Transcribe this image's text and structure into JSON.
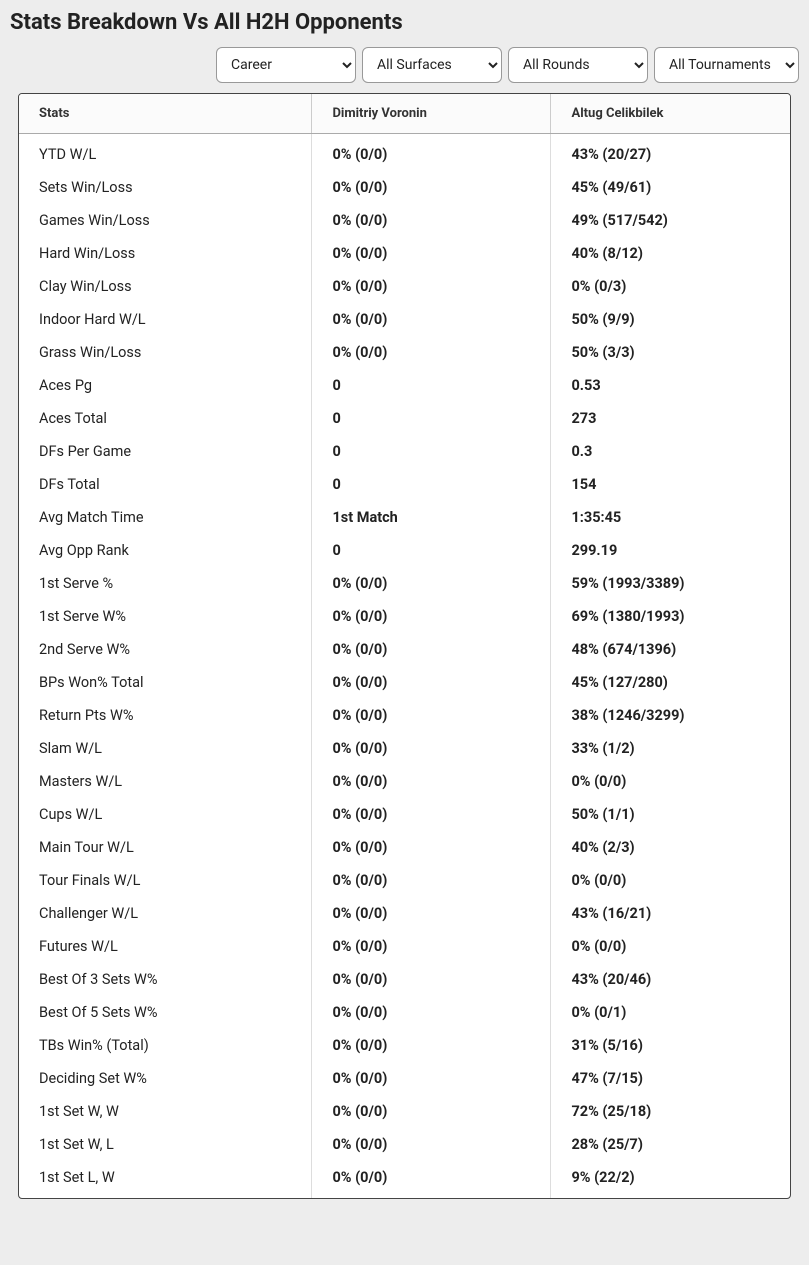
{
  "title": "Stats Breakdown Vs All H2H Opponents",
  "filters": {
    "period": {
      "selected": "Career"
    },
    "surface": {
      "selected": "All Surfaces"
    },
    "round": {
      "selected": "All Rounds"
    },
    "tournament": {
      "selected": "All Tournaments"
    }
  },
  "table": {
    "headers": {
      "stats": "Stats",
      "player1": "Dimitriy Voronin",
      "player2": "Altug Celikbilek"
    },
    "rows": [
      {
        "label": "YTD W/L",
        "p1": "0% (0/0)",
        "p2": "43% (20/27)"
      },
      {
        "label": "Sets Win/Loss",
        "p1": "0% (0/0)",
        "p2": "45% (49/61)"
      },
      {
        "label": "Games Win/Loss",
        "p1": "0% (0/0)",
        "p2": "49% (517/542)"
      },
      {
        "label": "Hard Win/Loss",
        "p1": "0% (0/0)",
        "p2": "40% (8/12)"
      },
      {
        "label": "Clay Win/Loss",
        "p1": "0% (0/0)",
        "p2": "0% (0/3)"
      },
      {
        "label": "Indoor Hard W/L",
        "p1": "0% (0/0)",
        "p2": "50% (9/9)"
      },
      {
        "label": "Grass Win/Loss",
        "p1": "0% (0/0)",
        "p2": "50% (3/3)"
      },
      {
        "label": "Aces Pg",
        "p1": "0",
        "p2": "0.53"
      },
      {
        "label": "Aces Total",
        "p1": "0",
        "p2": "273"
      },
      {
        "label": "DFs Per Game",
        "p1": "0",
        "p2": "0.3"
      },
      {
        "label": "DFs Total",
        "p1": "0",
        "p2": "154"
      },
      {
        "label": "Avg Match Time",
        "p1": "1st Match",
        "p2": "1:35:45"
      },
      {
        "label": "Avg Opp Rank",
        "p1": "0",
        "p2": "299.19"
      },
      {
        "label": "1st Serve %",
        "p1": "0% (0/0)",
        "p2": "59% (1993/3389)"
      },
      {
        "label": "1st Serve W%",
        "p1": "0% (0/0)",
        "p2": "69% (1380/1993)"
      },
      {
        "label": "2nd Serve W%",
        "p1": "0% (0/0)",
        "p2": "48% (674/1396)"
      },
      {
        "label": "BPs Won% Total",
        "p1": "0% (0/0)",
        "p2": "45% (127/280)"
      },
      {
        "label": "Return Pts W%",
        "p1": "0% (0/0)",
        "p2": "38% (1246/3299)"
      },
      {
        "label": "Slam W/L",
        "p1": "0% (0/0)",
        "p2": "33% (1/2)"
      },
      {
        "label": "Masters W/L",
        "p1": "0% (0/0)",
        "p2": "0% (0/0)"
      },
      {
        "label": "Cups W/L",
        "p1": "0% (0/0)",
        "p2": "50% (1/1)"
      },
      {
        "label": "Main Tour W/L",
        "p1": "0% (0/0)",
        "p2": "40% (2/3)"
      },
      {
        "label": "Tour Finals W/L",
        "p1": "0% (0/0)",
        "p2": "0% (0/0)"
      },
      {
        "label": "Challenger W/L",
        "p1": "0% (0/0)",
        "p2": "43% (16/21)"
      },
      {
        "label": "Futures W/L",
        "p1": "0% (0/0)",
        "p2": "0% (0/0)"
      },
      {
        "label": "Best Of 3 Sets W%",
        "p1": "0% (0/0)",
        "p2": "43% (20/46)"
      },
      {
        "label": "Best Of 5 Sets W%",
        "p1": "0% (0/0)",
        "p2": "0% (0/1)"
      },
      {
        "label": "TBs Win% (Total)",
        "p1": "0% (0/0)",
        "p2": "31% (5/16)"
      },
      {
        "label": "Deciding Set W%",
        "p1": "0% (0/0)",
        "p2": "47% (7/15)"
      },
      {
        "label": "1st Set W, W",
        "p1": "0% (0/0)",
        "p2": "72% (25/18)"
      },
      {
        "label": "1st Set W, L",
        "p1": "0% (0/0)",
        "p2": "28% (25/7)"
      },
      {
        "label": "1st Set L, W",
        "p1": "0% (0/0)",
        "p2": "9% (22/2)"
      }
    ]
  },
  "colors": {
    "page_bg": "#ededed",
    "card_bg": "#ffffff",
    "border_outer": "#444444",
    "border_header": "#aaaaaa",
    "border_col": "#dddddd",
    "text": "#222222"
  }
}
